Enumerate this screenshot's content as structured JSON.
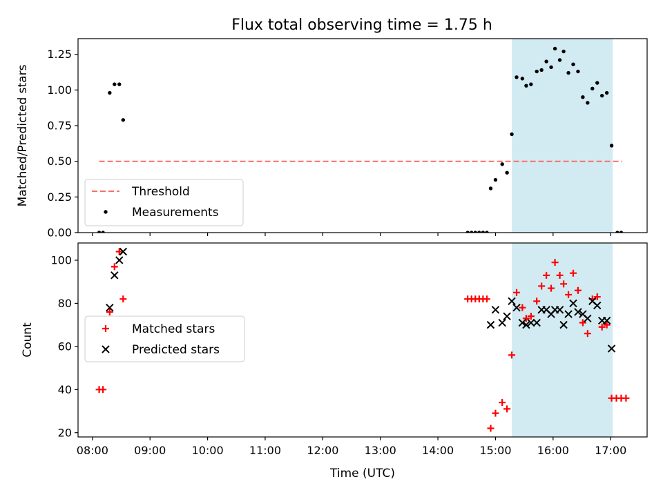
{
  "title": "Flux total observing time = 1.75 h",
  "chart_data": [
    {
      "type": "scatter",
      "panel": "top",
      "ylabel": "Matched/Predicted stars",
      "xlabel": "",
      "xlim": [
        "07:45",
        "17:38"
      ],
      "ylim": [
        0,
        1.36
      ],
      "yticks": [
        0,
        0.25,
        0.5,
        0.75,
        1.0,
        1.25
      ],
      "ytick_labels": [
        "0.00",
        "0.25",
        "0.50",
        "0.75",
        "1.00",
        "1.25"
      ],
      "grid": false,
      "legend_placement": "lower-left",
      "shaded_interval": {
        "from": "15:17",
        "to": "17:02",
        "color": "#add8e6"
      },
      "threshold": {
        "name": "Threshold",
        "value": 0.5,
        "from": "08:07",
        "to": "17:12",
        "color": "#ff6b6b"
      },
      "series": [
        {
          "name": "Measurements",
          "marker": "dot",
          "color": "#000000",
          "points": [
            [
              "08:07",
              0.0
            ],
            [
              "08:11",
              0.0
            ],
            [
              "08:18",
              0.98
            ],
            [
              "08:23",
              1.04
            ],
            [
              "08:28",
              1.04
            ],
            [
              "08:32",
              0.79
            ],
            [
              "14:31",
              0.0
            ],
            [
              "14:35",
              0.0
            ],
            [
              "14:39",
              0.0
            ],
            [
              "14:43",
              0.0
            ],
            [
              "14:47",
              0.0
            ],
            [
              "14:51",
              0.0
            ],
            [
              "14:55",
              0.31
            ],
            [
              "15:00",
              0.37
            ],
            [
              "15:07",
              0.48
            ],
            [
              "15:12",
              0.42
            ],
            [
              "15:17",
              0.69
            ],
            [
              "15:22",
              1.09
            ],
            [
              "15:28",
              1.08
            ],
            [
              "15:32",
              1.03
            ],
            [
              "15:37",
              1.04
            ],
            [
              "15:43",
              1.13
            ],
            [
              "15:48",
              1.14
            ],
            [
              "15:53",
              1.2
            ],
            [
              "15:58",
              1.16
            ],
            [
              "16:02",
              1.29
            ],
            [
              "16:07",
              1.21
            ],
            [
              "16:11",
              1.27
            ],
            [
              "16:16",
              1.12
            ],
            [
              "16:21",
              1.18
            ],
            [
              "16:26",
              1.13
            ],
            [
              "16:31",
              0.95
            ],
            [
              "16:36",
              0.91
            ],
            [
              "16:41",
              1.01
            ],
            [
              "16:46",
              1.05
            ],
            [
              "16:51",
              0.96
            ],
            [
              "16:56",
              0.98
            ],
            [
              "17:01",
              0.61
            ],
            [
              "17:07",
              0.0
            ],
            [
              "17:11",
              0.0
            ]
          ]
        }
      ]
    },
    {
      "type": "scatter",
      "panel": "bottom",
      "ylabel": "Count",
      "xlabel": "Time (UTC)",
      "xlim": [
        "07:45",
        "17:38"
      ],
      "ylim": [
        18,
        108
      ],
      "yticks": [
        20,
        40,
        60,
        80,
        100
      ],
      "ytick_labels": [
        "20",
        "40",
        "60",
        "80",
        "100"
      ],
      "xticks": [
        "08:00",
        "09:00",
        "10:00",
        "11:00",
        "12:00",
        "13:00",
        "14:00",
        "15:00",
        "16:00",
        "17:00"
      ],
      "grid": false,
      "legend_placement": "center-left",
      "shaded_interval": {
        "from": "15:17",
        "to": "17:02",
        "color": "#add8e6"
      },
      "series": [
        {
          "name": "Matched stars",
          "marker": "plus",
          "color": "#ff0000",
          "points": [
            [
              "08:07",
              40
            ],
            [
              "08:11",
              40
            ],
            [
              "08:18",
              76
            ],
            [
              "08:23",
              97
            ],
            [
              "08:28",
              104
            ],
            [
              "08:32",
              82
            ],
            [
              "14:31",
              82
            ],
            [
              "14:35",
              82
            ],
            [
              "14:39",
              82
            ],
            [
              "14:43",
              82
            ],
            [
              "14:47",
              82
            ],
            [
              "14:51",
              82
            ],
            [
              "14:55",
              22
            ],
            [
              "15:00",
              29
            ],
            [
              "15:07",
              34
            ],
            [
              "15:12",
              31
            ],
            [
              "15:17",
              56
            ],
            [
              "15:22",
              85
            ],
            [
              "15:28",
              78
            ],
            [
              "15:32",
              73
            ],
            [
              "15:37",
              74
            ],
            [
              "15:43",
              81
            ],
            [
              "15:48",
              88
            ],
            [
              "15:53",
              93
            ],
            [
              "15:58",
              87
            ],
            [
              "16:02",
              99
            ],
            [
              "16:07",
              93
            ],
            [
              "16:11",
              89
            ],
            [
              "16:16",
              84
            ],
            [
              "16:21",
              94
            ],
            [
              "16:26",
              86
            ],
            [
              "16:31",
              71
            ],
            [
              "16:36",
              66
            ],
            [
              "16:41",
              82
            ],
            [
              "16:46",
              83
            ],
            [
              "16:51",
              69
            ],
            [
              "16:56",
              70
            ],
            [
              "17:01",
              36
            ],
            [
              "17:06",
              36
            ],
            [
              "17:11",
              36
            ],
            [
              "17:16",
              36
            ]
          ]
        },
        {
          "name": "Predicted stars",
          "marker": "x",
          "color": "#000000",
          "points": [
            [
              "08:18",
              78
            ],
            [
              "08:23",
              93
            ],
            [
              "08:28",
              100
            ],
            [
              "08:32",
              104
            ],
            [
              "14:55",
              70
            ],
            [
              "15:00",
              77
            ],
            [
              "15:07",
              71
            ],
            [
              "15:12",
              74
            ],
            [
              "15:17",
              81
            ],
            [
              "15:22",
              78
            ],
            [
              "15:28",
              71
            ],
            [
              "15:32",
              70
            ],
            [
              "15:37",
              71
            ],
            [
              "15:43",
              71
            ],
            [
              "15:48",
              77
            ],
            [
              "15:53",
              77
            ],
            [
              "15:58",
              75
            ],
            [
              "16:02",
              77
            ],
            [
              "16:07",
              77
            ],
            [
              "16:11",
              70
            ],
            [
              "16:16",
              75
            ],
            [
              "16:21",
              80
            ],
            [
              "16:26",
              76
            ],
            [
              "16:31",
              75
            ],
            [
              "16:36",
              73
            ],
            [
              "16:41",
              81
            ],
            [
              "16:46",
              79
            ],
            [
              "16:51",
              72
            ],
            [
              "16:56",
              72
            ],
            [
              "17:01",
              59
            ]
          ]
        }
      ]
    }
  ]
}
